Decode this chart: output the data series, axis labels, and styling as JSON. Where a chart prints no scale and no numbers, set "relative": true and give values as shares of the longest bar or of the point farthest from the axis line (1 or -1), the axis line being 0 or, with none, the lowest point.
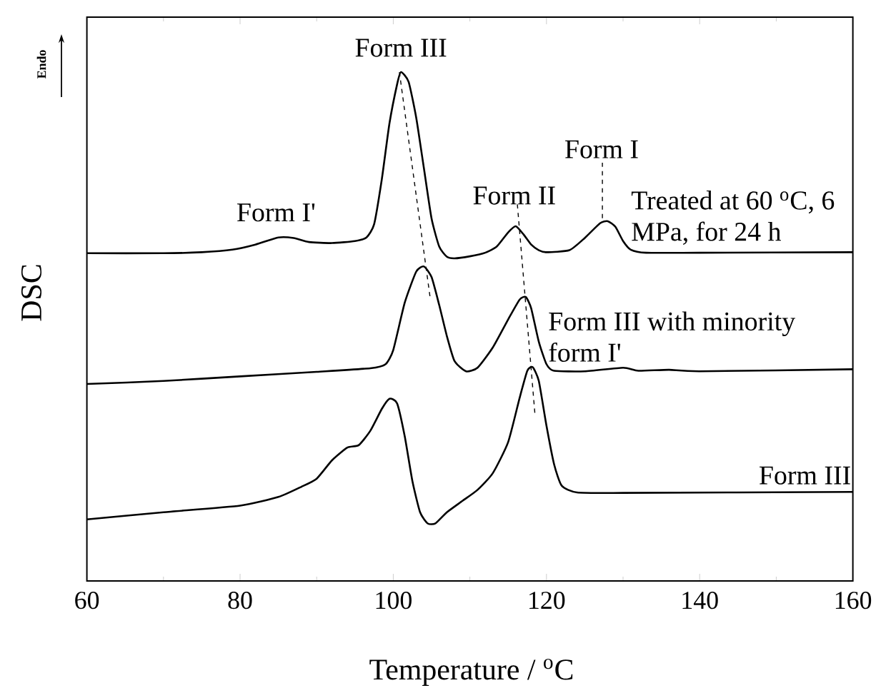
{
  "chart_data": {
    "type": "line",
    "xlabel": "Temperature / $^{o}$C",
    "ylabel": "DSC",
    "relative": true,
    "xlim": [
      60,
      160
    ],
    "xticks": [
      60,
      80,
      100,
      120,
      140,
      160
    ],
    "tick_labels": "x",
    "marker": "none",
    "series": [
      {
        "name": "Treated at 60 $^{o}$C, 6 MPa, for 24 h",
        "color": "#000000",
        "line_style": "solid",
        "x": [
          60,
          70,
          75,
          79,
          82,
          85,
          87,
          89,
          92,
          95,
          96.5,
          97.5,
          98.5,
          99.5,
          100.5,
          101,
          102,
          103,
          104,
          105,
          106,
          107,
          108,
          110,
          112,
          113.5,
          115,
          116,
          117,
          118,
          119,
          120,
          123,
          125,
          127,
          128,
          129,
          130,
          131,
          133,
          140,
          160
        ],
        "values": [
          0.644,
          0.644,
          0.646,
          0.651,
          0.661,
          0.675,
          0.674,
          0.666,
          0.664,
          0.668,
          0.675,
          0.701,
          0.789,
          0.899,
          0.976,
          1.0,
          0.981,
          0.91,
          0.811,
          0.712,
          0.657,
          0.637,
          0.634,
          0.638,
          0.645,
          0.657,
          0.685,
          0.697,
          0.681,
          0.661,
          0.65,
          0.646,
          0.65,
          0.674,
          0.703,
          0.707,
          0.696,
          0.668,
          0.651,
          0.645,
          0.645,
          0.646
        ]
      },
      {
        "name": "Form III with minority form I'",
        "color": "#000000",
        "line_style": "solid",
        "x": [
          60,
          70,
          80,
          90,
          97,
          99,
          100,
          101.5,
          103,
          104,
          105,
          106,
          107,
          108,
          109.5,
          111,
          113,
          115,
          116.5,
          117.3,
          118,
          119,
          120,
          121,
          125,
          130,
          132,
          136,
          140,
          160
        ],
        "values": [
          0.387,
          0.393,
          0.402,
          0.411,
          0.418,
          0.426,
          0.454,
          0.547,
          0.608,
          0.618,
          0.597,
          0.542,
          0.481,
          0.432,
          0.412,
          0.419,
          0.459,
          0.514,
          0.553,
          0.558,
          0.536,
          0.47,
          0.426,
          0.413,
          0.412,
          0.419,
          0.413,
          0.415,
          0.412,
          0.416
        ]
      },
      {
        "name": "Form III",
        "color": "#000000",
        "line_style": "solid",
        "x": [
          60,
          70,
          80,
          85,
          88,
          90,
          92,
          94,
          95.5,
          97,
          98.5,
          99.5,
          100.5,
          101.5,
          102.5,
          103.5,
          104.5,
          105.5,
          107,
          109,
          111,
          113,
          115,
          116.5,
          117.5,
          118.2,
          119,
          120,
          121,
          122,
          124,
          130,
          160
        ],
        "values": [
          0.121,
          0.135,
          0.148,
          0.165,
          0.185,
          0.201,
          0.237,
          0.262,
          0.267,
          0.295,
          0.338,
          0.358,
          0.349,
          0.284,
          0.196,
          0.135,
          0.113,
          0.113,
          0.135,
          0.157,
          0.179,
          0.212,
          0.273,
          0.36,
          0.413,
          0.42,
          0.393,
          0.305,
          0.229,
          0.187,
          0.174,
          0.173,
          0.175
        ]
      },
      {
        "color": "#000000",
        "line_style": "dashed",
        "x": [
          100.8,
          104.8
        ],
        "values": [
          1.0,
          0.558
        ]
      },
      {
        "color": "#000000",
        "line_style": "dashed",
        "x": [
          116.2,
          118.5
        ],
        "values": [
          0.74,
          0.327
        ]
      },
      {
        "color": "#000000",
        "line_style": "dashed",
        "x": [
          127.3,
          127.3
        ],
        "values": [
          0.822,
          0.707
        ]
      }
    ],
    "annotations": [
      "Endo",
      "Form I'",
      "Form III",
      "Form II",
      "Form I"
    ]
  }
}
